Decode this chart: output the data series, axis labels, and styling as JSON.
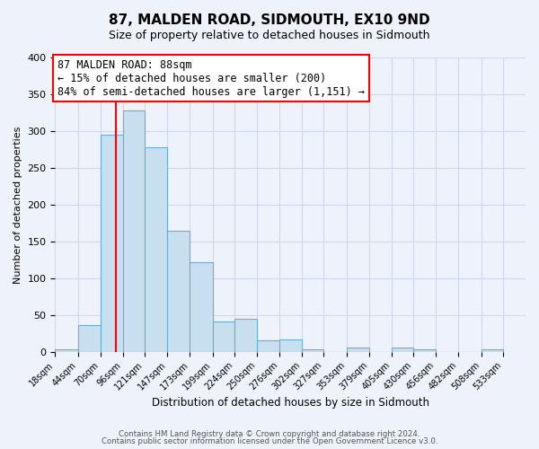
{
  "title": "87, MALDEN ROAD, SIDMOUTH, EX10 9ND",
  "subtitle": "Size of property relative to detached houses in Sidmouth",
  "xlabel": "Distribution of detached houses by size in Sidmouth",
  "ylabel": "Number of detached properties",
  "bin_labels": [
    "18sqm",
    "44sqm",
    "70sqm",
    "96sqm",
    "121sqm",
    "147sqm",
    "173sqm",
    "199sqm",
    "224sqm",
    "250sqm",
    "276sqm",
    "302sqm",
    "327sqm",
    "353sqm",
    "379sqm",
    "405sqm",
    "430sqm",
    "456sqm",
    "482sqm",
    "508sqm",
    "533sqm"
  ],
  "bin_edges": [
    18,
    44,
    70,
    96,
    121,
    147,
    173,
    199,
    224,
    250,
    276,
    302,
    327,
    353,
    379,
    405,
    430,
    456,
    482,
    508,
    533
  ],
  "bar_values": [
    3,
    36,
    295,
    328,
    278,
    165,
    122,
    41,
    45,
    16,
    17,
    4,
    0,
    6,
    0,
    6,
    3,
    0,
    0,
    3
  ],
  "bar_color": "#c8dff0",
  "bar_edge_color": "#6aaed6",
  "vline_x": 88,
  "vline_color": "red",
  "ylim": [
    0,
    400
  ],
  "yticks": [
    0,
    50,
    100,
    150,
    200,
    250,
    300,
    350,
    400
  ],
  "annotation_title": "87 MALDEN ROAD: 88sqm",
  "annotation_line1": "← 15% of detached houses are smaller (200)",
  "annotation_line2": "84% of semi-detached houses are larger (1,151) →",
  "annotation_box_color": "white",
  "annotation_box_edge": "red",
  "footer1": "Contains HM Land Registry data © Crown copyright and database right 2024.",
  "footer2": "Contains public sector information licensed under the Open Government Licence v3.0.",
  "background_color": "#eef2fa",
  "grid_color": "#d0d8ee"
}
